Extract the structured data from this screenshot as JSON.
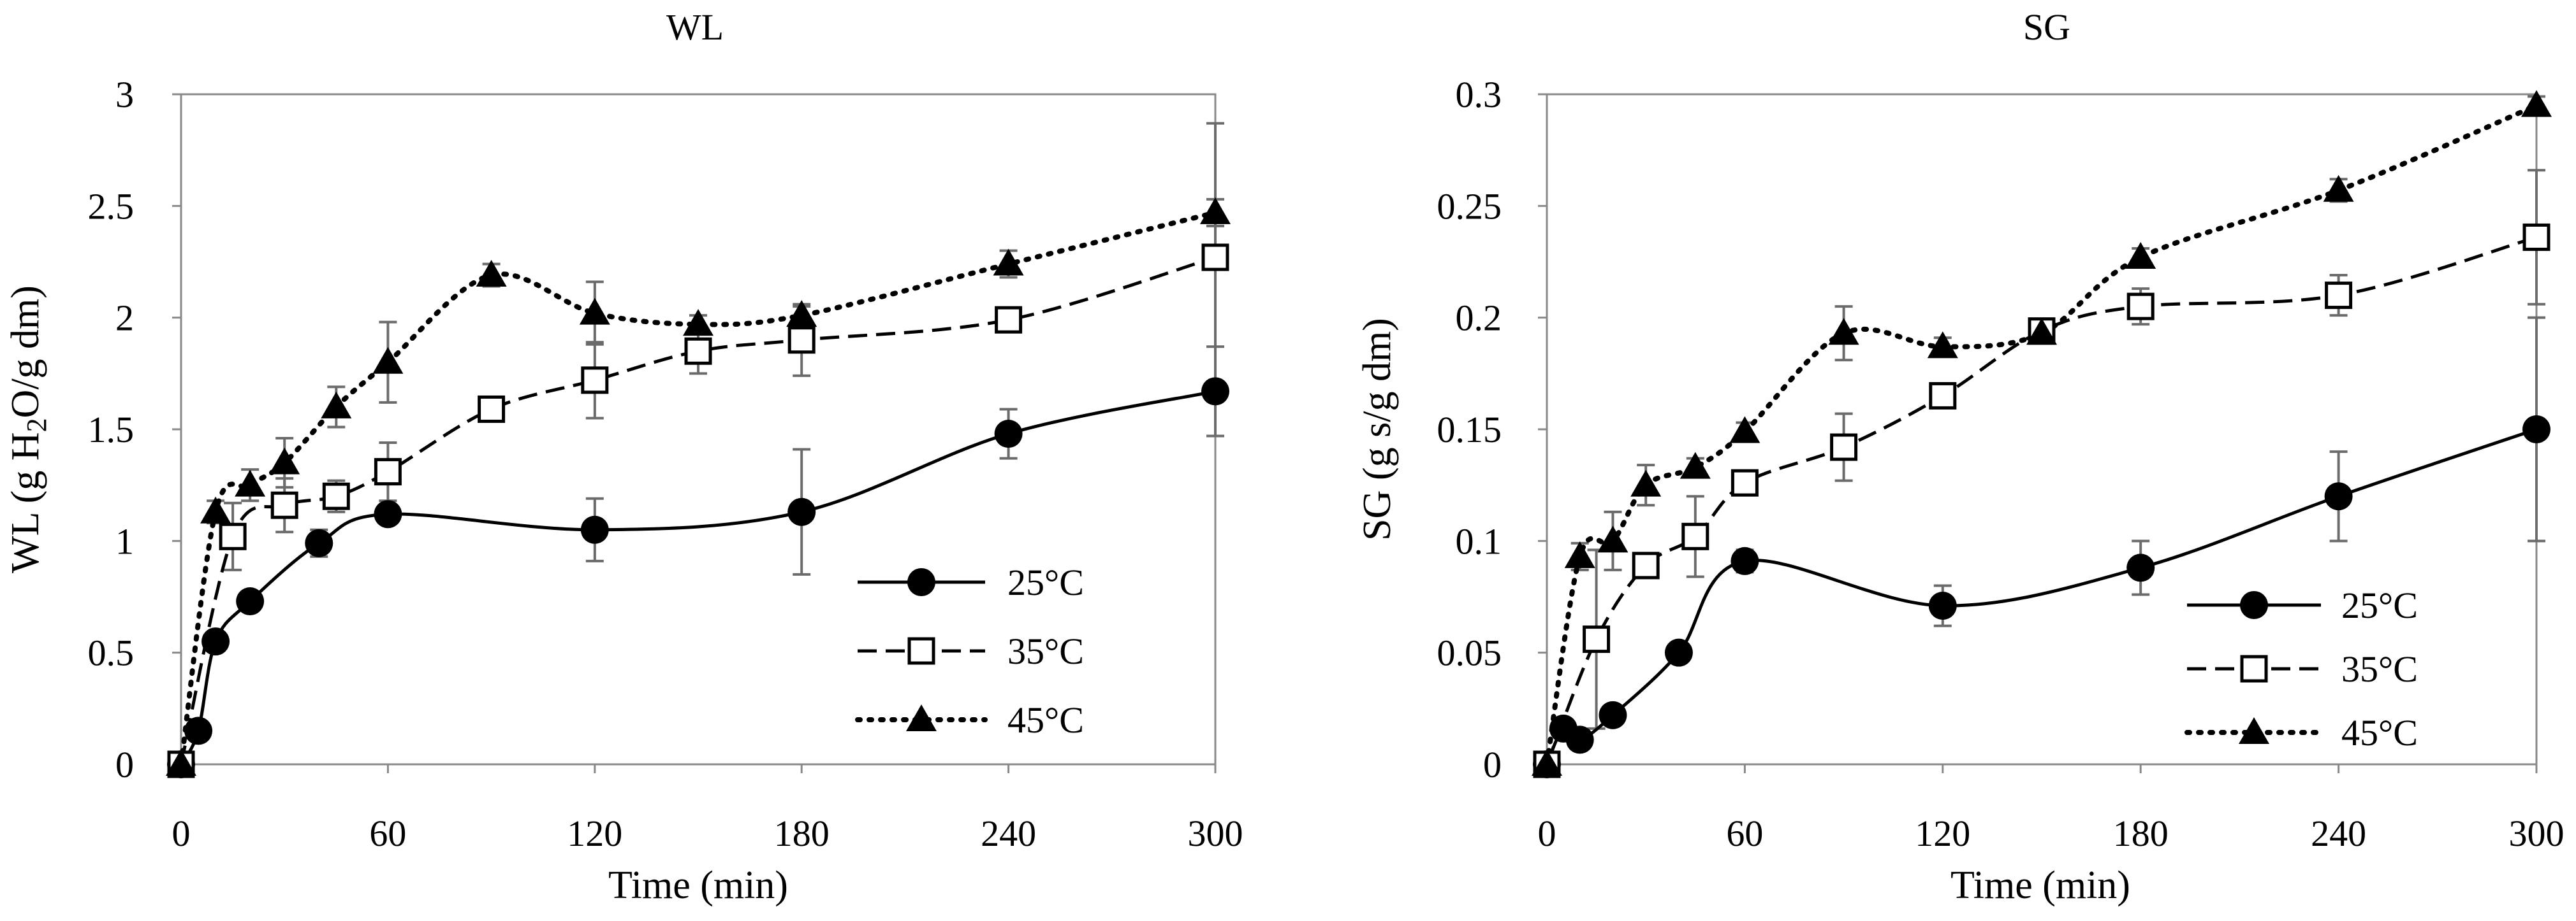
{
  "chart_data": [
    {
      "id": "wl",
      "type": "line",
      "title": "WL",
      "xlabel": "Time (min)",
      "ylabel": {
        "pre": "WL (g H",
        "sub": "2",
        "post": "O/g dm)"
      },
      "xlim": [
        0,
        300
      ],
      "ylim": [
        0,
        3
      ],
      "xticks": [
        0,
        60,
        120,
        180,
        240,
        300
      ],
      "yticks": [
        0,
        0.5,
        1,
        1.5,
        2,
        2.5,
        3
      ],
      "ytick_labels": [
        "0",
        "0.5",
        "1",
        "1.5",
        "2",
        "2.5",
        "3"
      ],
      "series": [
        {
          "name": "25°C",
          "marker": "circle",
          "line": "solid",
          "x": [
            0,
            5,
            10,
            20,
            40,
            60,
            120,
            180,
            240,
            300
          ],
          "y": [
            0,
            0.15,
            0.55,
            0.73,
            0.99,
            1.12,
            1.05,
            1.13,
            1.48,
            1.67
          ],
          "err": [
            0,
            0,
            0,
            0,
            0.06,
            0.03,
            0.14,
            0.28,
            0.11,
            0.2
          ]
        },
        {
          "name": "35°C",
          "marker": "square",
          "line": "dashed",
          "x": [
            0,
            15,
            30,
            45,
            60,
            90,
            120,
            150,
            180,
            240,
            300
          ],
          "y": [
            0,
            1.02,
            1.16,
            1.2,
            1.31,
            1.59,
            1.72,
            1.85,
            1.9,
            1.99,
            2.27
          ],
          "err": [
            0,
            0.15,
            0.12,
            0.07,
            0.13,
            0.04,
            0.17,
            0.1,
            0.16,
            0.05,
            0.6
          ]
        },
        {
          "name": "45°C",
          "marker": "triangle",
          "line": "dotted",
          "x": [
            0,
            10,
            20,
            30,
            45,
            60,
            90,
            120,
            150,
            180,
            240,
            300
          ],
          "y": [
            0,
            1.13,
            1.25,
            1.35,
            1.6,
            1.8,
            2.19,
            2.02,
            1.97,
            2.01,
            2.24,
            2.47
          ],
          "err": [
            0,
            0.05,
            0.07,
            0.11,
            0.09,
            0.18,
            0.05,
            0.14,
            0.04,
            0.04,
            0.06,
            0.06
          ]
        }
      ],
      "legend": [
        "25°C",
        "35°C",
        "45°C"
      ],
      "legend_position": "bottom-right"
    },
    {
      "id": "sg",
      "type": "line",
      "title": "SG",
      "xlabel": "Time (min)",
      "ylabel": {
        "pre": "SG (g s/g dm)",
        "sub": "",
        "post": ""
      },
      "xlim": [
        0,
        300
      ],
      "ylim": [
        0,
        0.3
      ],
      "xticks": [
        0,
        60,
        120,
        180,
        240,
        300
      ],
      "yticks": [
        0,
        0.05,
        0.1,
        0.15,
        0.2,
        0.25,
        0.3
      ],
      "ytick_labels": [
        "0",
        "0.05",
        "0.1",
        "0.15",
        "0.2",
        "0.25",
        "0.3"
      ],
      "series": [
        {
          "name": "25°C",
          "marker": "circle",
          "line": "solid",
          "x": [
            0,
            5,
            10,
            20,
            40,
            60,
            120,
            180,
            240,
            300
          ],
          "y": [
            0,
            0.016,
            0.011,
            0.022,
            0.05,
            0.091,
            0.071,
            0.088,
            0.12,
            0.15
          ],
          "err": [
            0,
            0,
            0,
            0,
            0,
            0.005,
            0.009,
            0.012,
            0.02,
            0.05
          ]
        },
        {
          "name": "35°C",
          "marker": "square",
          "line": "dashed",
          "x": [
            0,
            15,
            30,
            45,
            60,
            90,
            120,
            150,
            180,
            240,
            300
          ],
          "y": [
            0,
            0.056,
            0.089,
            0.102,
            0.126,
            0.142,
            0.165,
            0.194,
            0.205,
            0.21,
            0.236
          ],
          "err": [
            0,
            0.04,
            0.004,
            0.018,
            0.004,
            0.015,
            0.003,
            0.003,
            0.008,
            0.009,
            0.03
          ]
        },
        {
          "name": "45°C",
          "marker": "triangle",
          "line": "dotted",
          "x": [
            0,
            10,
            20,
            30,
            45,
            60,
            90,
            120,
            150,
            180,
            240,
            300
          ],
          "y": [
            0,
            0.093,
            0.1,
            0.125,
            0.133,
            0.149,
            0.193,
            0.187,
            0.193,
            0.227,
            0.257,
            0.295
          ],
          "err": [
            0,
            0.006,
            0.013,
            0.009,
            0.004,
            0.004,
            0.012,
            0.004,
            0.003,
            0.004,
            0.005,
            0.004
          ]
        }
      ],
      "legend": [
        "25°C",
        "35°C",
        "45°C"
      ],
      "legend_position": "bottom-right"
    }
  ]
}
